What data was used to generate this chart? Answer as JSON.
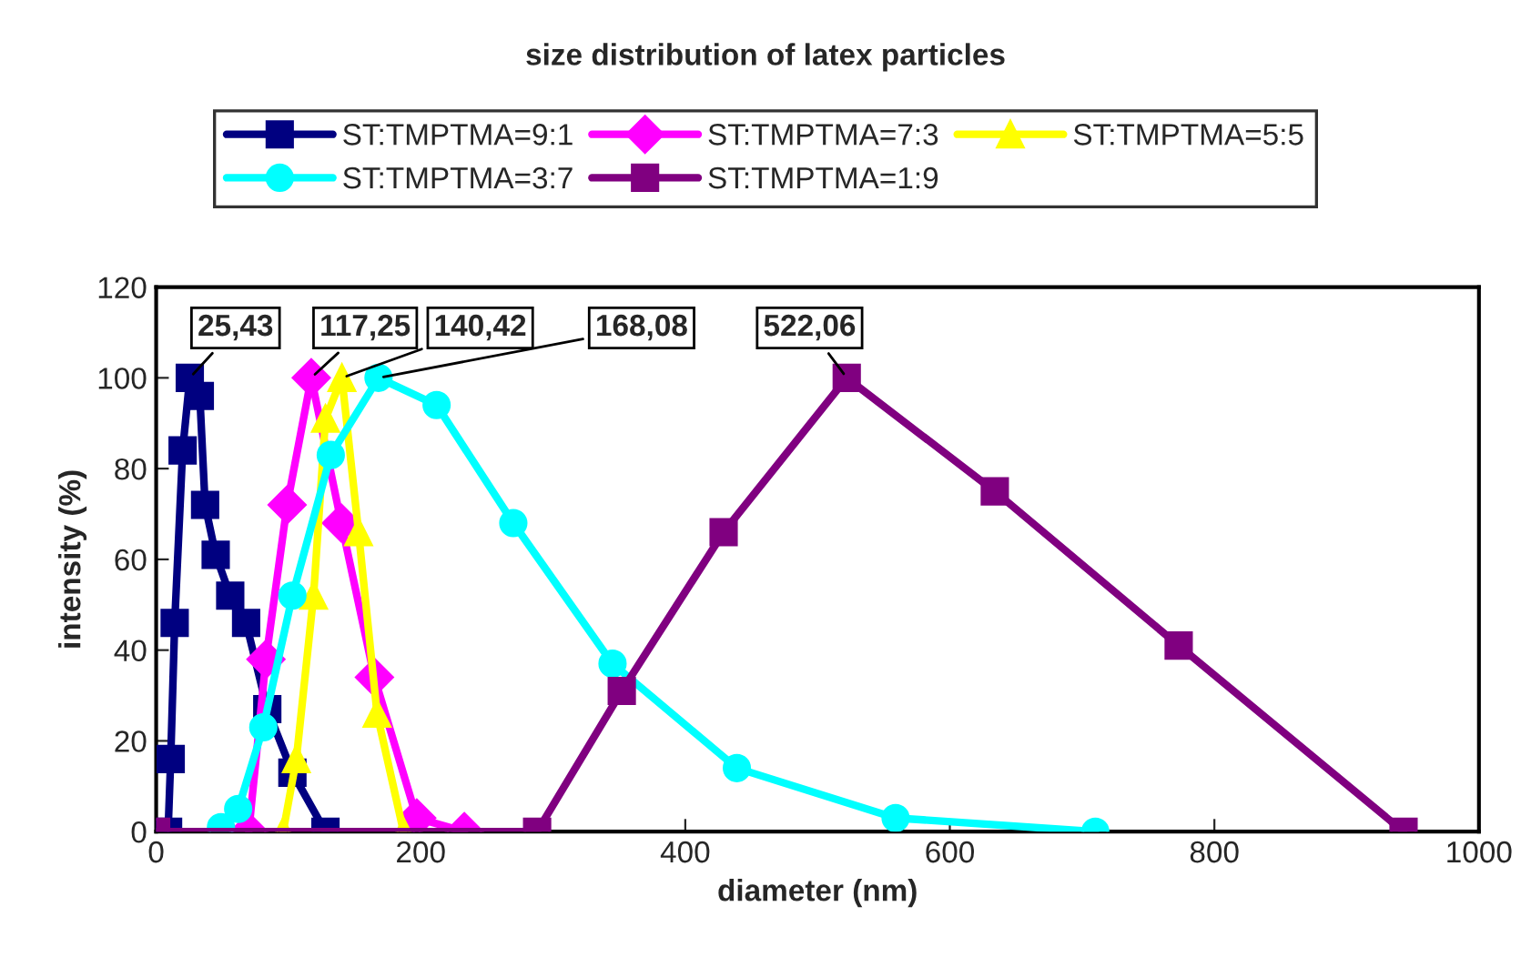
{
  "chart_data": {
    "type": "line",
    "title": "size distribution of latex particles",
    "xlabel": "diameter (nm)",
    "ylabel": "intensity (%)",
    "xlim": [
      0,
      1000
    ],
    "xticks": [
      0,
      200,
      400,
      600,
      800,
      1000
    ],
    "ylim": [
      0,
      120
    ],
    "yticks": [
      0,
      20,
      40,
      60,
      80,
      100,
      120
    ],
    "grid": false,
    "legend": "top",
    "line_style": "solid",
    "series": [
      {
        "name": "ST:TMPTMA=9:1",
        "color": "#000080",
        "marker": "square",
        "x": [
          9,
          11,
          14,
          20,
          25.43,
          33,
          37,
          45,
          56,
          68,
          84,
          103,
          128
        ],
        "values": [
          0,
          16,
          46,
          84,
          100,
          96,
          72,
          61,
          52,
          46,
          27,
          13,
          0
        ]
      },
      {
        "name": "ST:TMPTMA=7:3",
        "color": "#ff00ff",
        "marker": "diamond",
        "x": [
          70,
          83,
          99,
          117.25,
          140,
          165,
          197,
          233
        ],
        "values": [
          0,
          38,
          72,
          100,
          68,
          34,
          3,
          0
        ]
      },
      {
        "name": "ST:TMPTMA=5:5",
        "color": "#ffff00",
        "marker": "triangle",
        "x": [
          96,
          106,
          119,
          128,
          140.42,
          153,
          167,
          187
        ],
        "values": [
          0,
          16,
          52,
          91,
          100,
          66,
          26,
          0
        ]
      },
      {
        "name": "ST:TMPTMA=3:7",
        "color": "#00ffff",
        "marker": "circle",
        "x": [
          49,
          62,
          81,
          103,
          132,
          168.08,
          212,
          270,
          345,
          439,
          559,
          710
        ],
        "values": [
          1,
          5,
          23,
          52,
          83,
          100,
          94,
          68,
          37,
          14,
          3,
          0
        ]
      },
      {
        "name": "ST:TMPTMA=1:9",
        "color": "#800080",
        "marker": "square",
        "x": [
          0,
          288,
          352,
          429,
          522.06,
          634,
          773,
          943
        ],
        "values": [
          0,
          0,
          31,
          66,
          100,
          75,
          41,
          0
        ]
      }
    ],
    "annotations": [
      {
        "text": "25,43",
        "x": 25.43,
        "y": 100
      },
      {
        "text": "117,25",
        "x": 117.25,
        "y": 100
      },
      {
        "text": "140,42",
        "x": 140.42,
        "y": 100
      },
      {
        "text": "168,08",
        "x": 168.08,
        "y": 100
      },
      {
        "text": "522,06",
        "x": 522.06,
        "y": 100
      }
    ]
  }
}
